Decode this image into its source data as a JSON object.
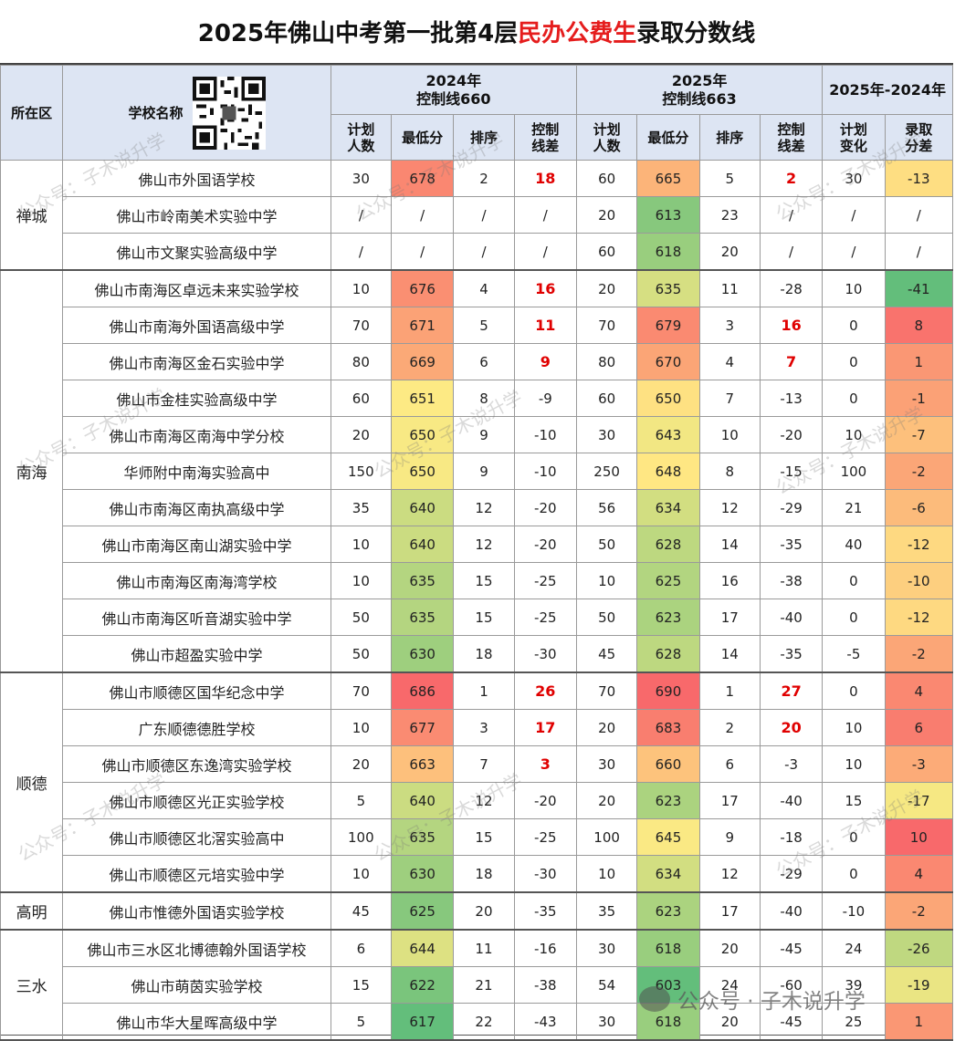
{
  "title": {
    "part1": "2025年佛山中考第一批第4层",
    "part2": "民办公费生",
    "part3": "录取分数线"
  },
  "header": {
    "district": "所在区",
    "school": "学校名称",
    "y2024_line1": "2024年",
    "y2024_line2": "控制线660",
    "y2025_line1": "2025年",
    "y2025_line2": "控制线663",
    "diff": "2025年-2024年",
    "cols": {
      "plan2024": [
        "计划",
        "人数"
      ],
      "min2024": "最低分",
      "rank2024": "排序",
      "ctrl2024": [
        "控制",
        "线差"
      ],
      "plan2025": [
        "计划",
        "人数"
      ],
      "min2025": "最低分",
      "rank2025": "排序",
      "ctrl2025": [
        "控制",
        "线差"
      ],
      "planChange": [
        "计划",
        "变化"
      ],
      "scoreDiff": [
        "录取",
        "分差"
      ]
    }
  },
  "groups": [
    {
      "district": "禅城",
      "rows": [
        {
          "school": "佛山市外国语学校",
          "plan24": "30",
          "min24": "678",
          "rank24": "2",
          "ctrl24": "18",
          "plan25": "60",
          "min25": "665",
          "rank25": "5",
          "ctrl25": "2",
          "change": "30",
          "diff": "-13"
        },
        {
          "school": "佛山市岭南美术实验中学",
          "plan24": "/",
          "min24": "/",
          "rank24": "/",
          "ctrl24": "/",
          "plan25": "20",
          "min25": "613",
          "rank25": "23",
          "ctrl25": "/",
          "change": "/",
          "diff": "/"
        },
        {
          "school": "佛山市文聚实验高级中学",
          "plan24": "/",
          "min24": "/",
          "rank24": "/",
          "ctrl24": "/",
          "plan25": "60",
          "min25": "618",
          "rank25": "20",
          "ctrl25": "/",
          "change": "/",
          "diff": "/"
        }
      ]
    },
    {
      "district": "南海",
      "rows": [
        {
          "school": "佛山市南海区卓远未来实验学校",
          "plan24": "10",
          "min24": "676",
          "rank24": "4",
          "ctrl24": "16",
          "plan25": "20",
          "min25": "635",
          "rank25": "11",
          "ctrl25": "-28",
          "change": "10",
          "diff": "-41"
        },
        {
          "school": "佛山市南海外国语高级中学",
          "plan24": "70",
          "min24": "671",
          "rank24": "5",
          "ctrl24": "11",
          "plan25": "70",
          "min25": "679",
          "rank25": "3",
          "ctrl25": "16",
          "change": "0",
          "diff": "8"
        },
        {
          "school": "佛山市南海区金石实验中学",
          "plan24": "80",
          "min24": "669",
          "rank24": "6",
          "ctrl24": "9",
          "plan25": "80",
          "min25": "670",
          "rank25": "4",
          "ctrl25": "7",
          "change": "0",
          "diff": "1"
        },
        {
          "school": "佛山市金桂实验高级中学",
          "plan24": "60",
          "min24": "651",
          "rank24": "8",
          "ctrl24": "-9",
          "plan25": "60",
          "min25": "650",
          "rank25": "7",
          "ctrl25": "-13",
          "change": "0",
          "diff": "-1"
        },
        {
          "school": "佛山市南海区南海中学分校",
          "plan24": "20",
          "min24": "650",
          "rank24": "9",
          "ctrl24": "-10",
          "plan25": "30",
          "min25": "643",
          "rank25": "10",
          "ctrl25": "-20",
          "change": "10",
          "diff": "-7"
        },
        {
          "school": "华师附中南海实验高中",
          "plan24": "150",
          "min24": "650",
          "rank24": "9",
          "ctrl24": "-10",
          "plan25": "250",
          "min25": "648",
          "rank25": "8",
          "ctrl25": "-15",
          "change": "100",
          "diff": "-2"
        },
        {
          "school": "佛山市南海区南执高级中学",
          "plan24": "35",
          "min24": "640",
          "rank24": "12",
          "ctrl24": "-20",
          "plan25": "56",
          "min25": "634",
          "rank25": "12",
          "ctrl25": "-29",
          "change": "21",
          "diff": "-6"
        },
        {
          "school": "佛山市南海区南山湖实验中学",
          "plan24": "10",
          "min24": "640",
          "rank24": "12",
          "ctrl24": "-20",
          "plan25": "50",
          "min25": "628",
          "rank25": "14",
          "ctrl25": "-35",
          "change": "40",
          "diff": "-12"
        },
        {
          "school": "佛山市南海区南海湾学校",
          "plan24": "10",
          "min24": "635",
          "rank24": "15",
          "ctrl24": "-25",
          "plan25": "10",
          "min25": "625",
          "rank25": "16",
          "ctrl25": "-38",
          "change": "0",
          "diff": "-10"
        },
        {
          "school": "佛山市南海区听音湖实验中学",
          "plan24": "50",
          "min24": "635",
          "rank24": "15",
          "ctrl24": "-25",
          "plan25": "50",
          "min25": "623",
          "rank25": "17",
          "ctrl25": "-40",
          "change": "0",
          "diff": "-12"
        },
        {
          "school": "佛山市超盈实验中学",
          "plan24": "50",
          "min24": "630",
          "rank24": "18",
          "ctrl24": "-30",
          "plan25": "45",
          "min25": "628",
          "rank25": "14",
          "ctrl25": "-35",
          "change": "-5",
          "diff": "-2"
        }
      ]
    },
    {
      "district": "顺德",
      "rows": [
        {
          "school": "佛山市顺德区国华纪念中学",
          "plan24": "70",
          "min24": "686",
          "rank24": "1",
          "ctrl24": "26",
          "plan25": "70",
          "min25": "690",
          "rank25": "1",
          "ctrl25": "27",
          "change": "0",
          "diff": "4"
        },
        {
          "school": "广东顺德德胜学校",
          "plan24": "10",
          "min24": "677",
          "rank24": "3",
          "ctrl24": "17",
          "plan25": "20",
          "min25": "683",
          "rank25": "2",
          "ctrl25": "20",
          "change": "10",
          "diff": "6"
        },
        {
          "school": "佛山市顺德区东逸湾实验学校",
          "plan24": "20",
          "min24": "663",
          "rank24": "7",
          "ctrl24": "3",
          "plan25": "30",
          "min25": "660",
          "rank25": "6",
          "ctrl25": "-3",
          "change": "10",
          "diff": "-3"
        },
        {
          "school": "佛山市顺德区光正实验学校",
          "plan24": "5",
          "min24": "640",
          "rank24": "12",
          "ctrl24": "-20",
          "plan25": "20",
          "min25": "623",
          "rank25": "17",
          "ctrl25": "-40",
          "change": "15",
          "diff": "-17"
        },
        {
          "school": "佛山市顺德区北滘实验高中",
          "plan24": "100",
          "min24": "635",
          "rank24": "15",
          "ctrl24": "-25",
          "plan25": "100",
          "min25": "645",
          "rank25": "9",
          "ctrl25": "-18",
          "change": "0",
          "diff": "10"
        },
        {
          "school": "佛山市顺德区元培实验中学",
          "plan24": "10",
          "min24": "630",
          "rank24": "18",
          "ctrl24": "-30",
          "plan25": "10",
          "min25": "634",
          "rank25": "12",
          "ctrl25": "-29",
          "change": "0",
          "diff": "4"
        }
      ]
    },
    {
      "district": "高明",
      "rows": [
        {
          "school": "佛山市惟德外国语实验学校",
          "plan24": "45",
          "min24": "625",
          "rank24": "20",
          "ctrl24": "-35",
          "plan25": "35",
          "min25": "623",
          "rank25": "17",
          "ctrl25": "-40",
          "change": "-10",
          "diff": "-2"
        }
      ]
    },
    {
      "district": "三水",
      "rows": [
        {
          "school": "佛山市三水区北博德翰外国语学校",
          "plan24": "6",
          "min24": "644",
          "rank24": "11",
          "ctrl24": "-16",
          "plan25": "30",
          "min25": "618",
          "rank25": "20",
          "ctrl25": "-45",
          "change": "24",
          "diff": "-26"
        },
        {
          "school": "佛山市萌茵实验学校",
          "plan24": "15",
          "min24": "622",
          "rank24": "21",
          "ctrl24": "-38",
          "plan25": "54",
          "min25": "603",
          "rank25": "24",
          "ctrl25": "-60",
          "change": "39",
          "diff": "-19"
        },
        {
          "school": "佛山市华大星晖高级中学",
          "plan24": "5",
          "min24": "617",
          "rank24": "22",
          "ctrl24": "-43",
          "plan25": "30",
          "min25": "618",
          "rank25": "20",
          "ctrl25": "-45",
          "change": "25",
          "diff": "1"
        }
      ]
    }
  ],
  "watermark": {
    "text": "公众号：子木说升学",
    "bottom": "公众号 · 子木说升学"
  },
  "icons": {
    "qr": "qr-code-icon",
    "wechat": "wechat-logo-icon"
  },
  "colors": {
    "headerBg": "#dde5f3",
    "highlightRed": "#e51d1d",
    "positiveCtrl": "#e00000"
  }
}
